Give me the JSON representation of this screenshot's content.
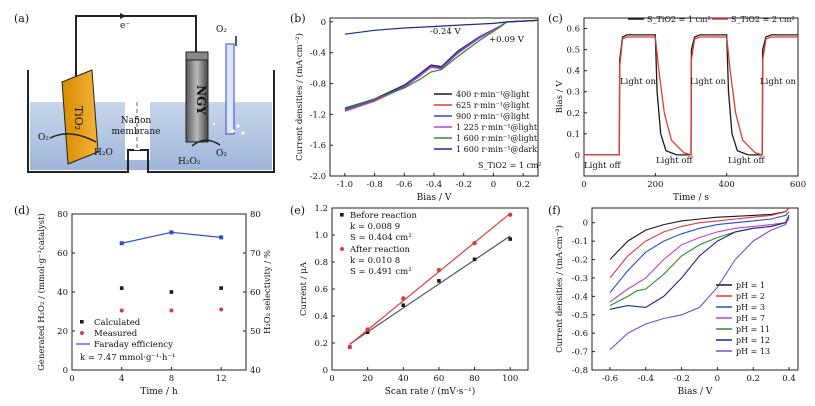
{
  "panels": {
    "a": {
      "letter": "(a)",
      "electron": "e⁻",
      "tio2": "TiO₂",
      "ngy": "NGY",
      "nafion": "Nafion",
      "membrane": "membrane",
      "o2_left": "O₂",
      "h2o": "H₂O",
      "h2o2": "H₂O₂",
      "o2_right": "O₂",
      "o2_top": "O₂"
    },
    "b": {
      "letter": "(b)"
    },
    "c": {
      "letter": "(c)"
    },
    "d": {
      "letter": "(d)"
    },
    "e": {
      "letter": "(e)"
    },
    "f": {
      "letter": "(f)"
    }
  },
  "colors": {
    "black": "#1a1a1a",
    "red": "#e03a3a",
    "blue": "#2b4bd6",
    "magenta": "#c040c0",
    "green": "#2e8b2e",
    "navy": "#1f2a8a",
    "purple": "#7b4fc8"
  },
  "chart_data": [
    {
      "id": "b",
      "type": "line",
      "xlabel": "Bias / V",
      "ylabel": "Current densities / (mA·cm⁻²)",
      "xlim": [
        -1.1,
        0.3
      ],
      "ylim": [
        -2.0,
        0.05
      ],
      "xticks": [
        "-1.0",
        "-0.8",
        "-0.6",
        "-0.4",
        "-0.2",
        "0",
        "0.2"
      ],
      "yticks": [
        "0",
        "-0.4",
        "-0.8",
        "-1.2",
        "-1.6",
        "-2.0"
      ],
      "annotations": [
        "-0.24 V",
        "+0.09 V",
        "S_TiO2 = 1 cm²"
      ],
      "legend_position": "bottom-right",
      "series": [
        {
          "name": "400 r·min⁻¹@light",
          "x": [
            -1.0,
            -0.8,
            -0.6,
            -0.5,
            -0.42,
            -0.35,
            -0.24,
            -0.1,
            0.05,
            0.09,
            0.3
          ],
          "y": [
            -1.12,
            -1.0,
            -0.82,
            -0.68,
            -0.56,
            -0.58,
            -0.38,
            -0.2,
            -0.05,
            0.0,
            0.02
          ]
        },
        {
          "name": "625 r·min⁻¹@light",
          "x": [
            -1.0,
            -0.8,
            -0.6,
            -0.5,
            -0.42,
            -0.35,
            -0.24,
            -0.1,
            0.05,
            0.09,
            0.3
          ],
          "y": [
            -1.15,
            -1.02,
            -0.84,
            -0.7,
            -0.58,
            -0.6,
            -0.4,
            -0.21,
            -0.05,
            0.0,
            0.02
          ]
        },
        {
          "name": "900 r·min⁻¹@light",
          "x": [
            -1.0,
            -0.8,
            -0.6,
            -0.5,
            -0.42,
            -0.35,
            -0.24,
            -0.1,
            0.05,
            0.09,
            0.3
          ],
          "y": [
            -1.14,
            -1.01,
            -0.83,
            -0.69,
            -0.57,
            -0.59,
            -0.39,
            -0.2,
            -0.05,
            0.0,
            0.02
          ]
        },
        {
          "name": "1 225 r·min⁻¹@light",
          "x": [
            -1.0,
            -0.8,
            -0.6,
            -0.5,
            -0.42,
            -0.35,
            -0.24,
            -0.1,
            0.05,
            0.09,
            0.3
          ],
          "y": [
            -1.16,
            -1.03,
            -0.85,
            -0.71,
            -0.59,
            -0.61,
            -0.41,
            -0.22,
            -0.05,
            0.0,
            0.02
          ]
        },
        {
          "name": "1 600 r·min⁻¹@light",
          "x": [
            -1.0,
            -0.8,
            -0.6,
            -0.5,
            -0.42,
            -0.35,
            -0.24,
            -0.1,
            0.05,
            0.09,
            0.3
          ],
          "y": [
            -1.13,
            -1.0,
            -0.86,
            -0.75,
            -0.65,
            -0.62,
            -0.45,
            -0.25,
            -0.06,
            0.0,
            0.02
          ]
        },
        {
          "name": "1 600 r·min⁻¹@dark",
          "x": [
            -1.0,
            -0.8,
            -0.6,
            -0.4,
            -0.2,
            0.0,
            0.1,
            0.2,
            0.3
          ],
          "y": [
            -0.16,
            -0.11,
            -0.08,
            -0.06,
            -0.04,
            -0.02,
            0.0,
            0.01,
            0.02
          ]
        }
      ]
    },
    {
      "id": "c",
      "type": "line",
      "xlabel": "Time / s",
      "ylabel": "Bias / V",
      "xlim": [
        0,
        600
      ],
      "ylim": [
        -0.1,
        0.65
      ],
      "xticks": [
        "0",
        "200",
        "400",
        "600"
      ],
      "yticks": [
        "0",
        "0.1",
        "0.2",
        "0.3",
        "0.4",
        "0.5",
        "0.6"
      ],
      "annotations": [
        "Light on",
        "Light on",
        "Light on",
        "Light off",
        "Light off",
        "Light off"
      ],
      "legend_position": "top",
      "series": [
        {
          "name": "S_TiO2 = 1 cm²",
          "x": [
            0,
            99,
            100,
            108,
            120,
            200,
            205,
            215,
            230,
            260,
            300,
            301,
            310,
            325,
            400,
            405,
            415,
            430,
            460,
            500,
            501,
            510,
            525,
            600
          ],
          "y": [
            0,
            0,
            0.45,
            0.56,
            0.57,
            0.57,
            0.3,
            0.1,
            0.02,
            0,
            0,
            0.5,
            0.56,
            0.57,
            0.57,
            0.3,
            0.1,
            0.02,
            0,
            0,
            0.5,
            0.56,
            0.57,
            0.57
          ]
        },
        {
          "name": "S_TiO2 = 2 cm²",
          "x": [
            0,
            99,
            100,
            108,
            120,
            200,
            210,
            225,
            245,
            280,
            300,
            301,
            310,
            325,
            400,
            410,
            425,
            445,
            480,
            500,
            501,
            510,
            525,
            600
          ],
          "y": [
            0,
            0,
            0.42,
            0.55,
            0.56,
            0.56,
            0.4,
            0.2,
            0.07,
            0.01,
            0,
            0.45,
            0.55,
            0.56,
            0.56,
            0.4,
            0.2,
            0.07,
            0.01,
            0,
            0.45,
            0.55,
            0.56,
            0.56
          ]
        }
      ]
    },
    {
      "id": "d",
      "type": "scatter",
      "xlabel": "Time / h",
      "ylabel": "Generated H₂O₂ / (mmol·g⁻¹catalyst)",
      "ylabel2": "H₂O₂ selectivity / %",
      "xlim": [
        0,
        14
      ],
      "ylim": [
        0,
        80
      ],
      "ylim2": [
        40,
        80
      ],
      "xticks": [
        "0",
        "4",
        "8",
        "12"
      ],
      "yticks": [
        "0",
        "20",
        "40",
        "60",
        "80"
      ],
      "yticks2": [
        "40",
        "50",
        "60",
        "70",
        "80"
      ],
      "annotations": [
        "k = 7.47 mmol·g⁻¹·h⁻¹"
      ],
      "legend_position": "bottom-left",
      "series": [
        {
          "name": "Calculated",
          "x": [
            4,
            8,
            12
          ],
          "y": [
            42,
            40,
            42
          ]
        },
        {
          "name": "Measured",
          "x": [
            4,
            8,
            12
          ],
          "y": [
            30.5,
            30.5,
            31
          ]
        },
        {
          "name": "Faraday efficiency",
          "x": [
            4,
            8,
            12
          ],
          "y": [
            72.5,
            75.3,
            74
          ]
        }
      ]
    },
    {
      "id": "e",
      "type": "scatter",
      "xlabel": "Scan rate / (mV·s⁻¹)",
      "ylabel": "Current / μA",
      "xlim": [
        0,
        110
      ],
      "ylim": [
        0,
        1.2
      ],
      "xticks": [
        "0",
        "20",
        "40",
        "60",
        "80",
        "100"
      ],
      "yticks": [
        "0",
        "0.2",
        "0.4",
        "0.6",
        "0.8",
        "1.0",
        "1.2"
      ],
      "annotations": [
        "Before reaction",
        "k = 0.008 9",
        "S = 0.404 cm²",
        "After reaction",
        "k = 0.010 8",
        "S = 0.491 cm²"
      ],
      "legend_position": "top-left",
      "series": [
        {
          "name": "Before reaction",
          "x": [
            10,
            20,
            40,
            60,
            80,
            100
          ],
          "y": [
            0.17,
            0.28,
            0.48,
            0.66,
            0.82,
            0.97
          ]
        },
        {
          "name": "After reaction",
          "x": [
            10,
            20,
            40,
            60,
            80,
            100
          ],
          "y": [
            0.17,
            0.3,
            0.53,
            0.74,
            0.94,
            1.15
          ]
        }
      ]
    },
    {
      "id": "f",
      "type": "line",
      "xlabel": "Bias / V",
      "ylabel": "Current densities / (mA·cm⁻²)",
      "xlim": [
        -0.7,
        0.45
      ],
      "ylim": [
        -0.8,
        0.08
      ],
      "xticks": [
        "-0.6",
        "-0.4",
        "-0.2",
        "0",
        "0.2",
        "0.4"
      ],
      "yticks": [
        "0",
        "-0.1",
        "-0.2",
        "-0.3",
        "-0.4",
        "-0.5",
        "-0.6",
        "-0.7",
        "-0.8"
      ],
      "legend_position": "right",
      "series": [
        {
          "name": "pH = 1",
          "x": [
            -0.6,
            -0.5,
            -0.4,
            -0.3,
            -0.2,
            -0.1,
            0.0,
            0.1,
            0.2,
            0.3,
            0.38,
            0.4
          ],
          "y": [
            -0.2,
            -0.1,
            -0.04,
            -0.01,
            0.01,
            0.02,
            0.03,
            0.035,
            0.04,
            0.045,
            0.06,
            0.08
          ]
        },
        {
          "name": "pH = 2",
          "x": [
            -0.6,
            -0.5,
            -0.4,
            -0.3,
            -0.2,
            -0.1,
            0.0,
            0.1,
            0.2,
            0.3,
            0.38,
            0.4
          ],
          "y": [
            -0.3,
            -0.18,
            -0.1,
            -0.05,
            -0.02,
            0.0,
            0.01,
            0.02,
            0.03,
            0.04,
            0.06,
            0.08
          ]
        },
        {
          "name": "pH = 3",
          "x": [
            -0.6,
            -0.5,
            -0.4,
            -0.3,
            -0.2,
            -0.1,
            0.0,
            0.1,
            0.2,
            0.3,
            0.38,
            0.4
          ],
          "y": [
            -0.38,
            -0.26,
            -0.16,
            -0.1,
            -0.06,
            -0.03,
            -0.01,
            0.0,
            0.01,
            0.02,
            0.04,
            0.06
          ]
        },
        {
          "name": "pH = 7",
          "x": [
            -0.6,
            -0.5,
            -0.4,
            -0.3,
            -0.2,
            -0.1,
            0.0,
            0.1,
            0.2,
            0.3,
            0.38,
            0.4
          ],
          "y": [
            -0.43,
            -0.36,
            -0.3,
            -0.2,
            -0.12,
            -0.08,
            -0.05,
            -0.03,
            -0.02,
            -0.01,
            0.0,
            0.02
          ]
        },
        {
          "name": "pH = 11",
          "x": [
            -0.6,
            -0.5,
            -0.45,
            -0.4,
            -0.3,
            -0.2,
            -0.1,
            0.0,
            0.1,
            0.2,
            0.3,
            0.38,
            0.4
          ],
          "y": [
            -0.45,
            -0.4,
            -0.37,
            -0.36,
            -0.28,
            -0.18,
            -0.12,
            -0.08,
            -0.05,
            -0.03,
            -0.02,
            0.0,
            0.03
          ]
        },
        {
          "name": "pH = 12",
          "x": [
            -0.6,
            -0.5,
            -0.4,
            -0.3,
            -0.2,
            -0.1,
            0.0,
            0.1,
            0.2,
            0.3,
            0.38,
            0.4
          ],
          "y": [
            -0.47,
            -0.45,
            -0.46,
            -0.4,
            -0.3,
            -0.18,
            -0.1,
            -0.05,
            -0.03,
            -0.02,
            0.0,
            0.04
          ]
        },
        {
          "name": "pH = 13",
          "x": [
            -0.6,
            -0.5,
            -0.4,
            -0.3,
            -0.2,
            -0.1,
            0.0,
            0.1,
            0.2,
            0.3,
            0.38,
            0.4
          ],
          "y": [
            -0.69,
            -0.6,
            -0.55,
            -0.52,
            -0.5,
            -0.46,
            -0.35,
            -0.2,
            -0.1,
            -0.04,
            -0.01,
            0.03
          ]
        }
      ]
    }
  ]
}
